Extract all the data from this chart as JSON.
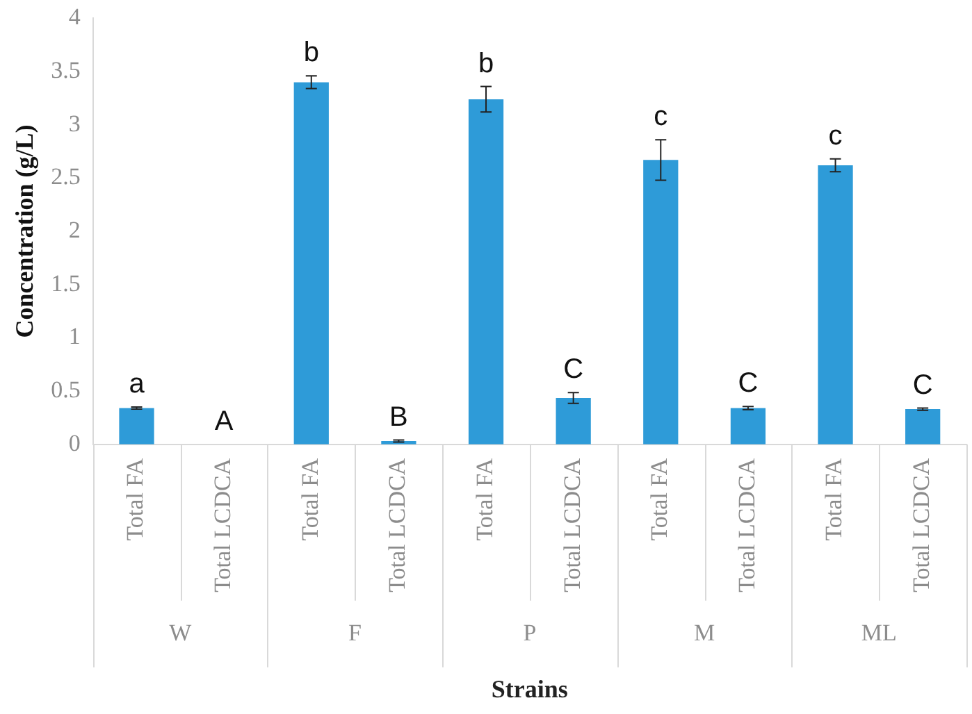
{
  "chart_data": {
    "type": "bar",
    "xlabel": "Strains",
    "ylabel": "Concentration (g/L)",
    "categories": [
      "Total FA",
      "Total LCDCA",
      "Total FA",
      "Total LCDCA",
      "Total FA",
      "Total LCDCA",
      "Total FA",
      "Total LCDCA",
      "Total FA",
      "Total LCDCA"
    ],
    "values": [
      0.34,
      0,
      3.4,
      0.03,
      3.24,
      0.435,
      2.67,
      0.34,
      2.62,
      0.33
    ],
    "errors": [
      0.01,
      null,
      0.06,
      0.01,
      0.12,
      0.05,
      0.19,
      0.015,
      0.06,
      0.01
    ],
    "color": "#2e9bd8",
    "ylim": [
      0,
      4
    ],
    "yticks": [
      0,
      0.5,
      1,
      1.5,
      2,
      2.5,
      3,
      3.5,
      4
    ],
    "grid": false,
    "legend": false,
    "annotations": [
      "a",
      "A",
      "b",
      "B",
      "b",
      "C",
      "c",
      "C",
      "c",
      "C",
      "W",
      "F",
      "P",
      "M",
      "ML"
    ]
  }
}
